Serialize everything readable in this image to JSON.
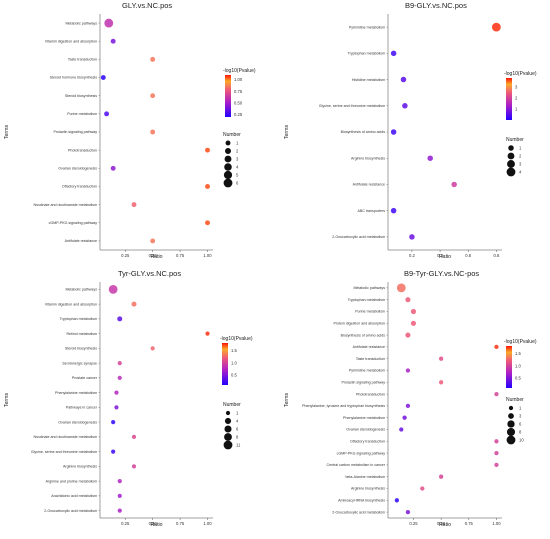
{
  "chart_data": [
    {
      "type": "scatter",
      "title": "GLY.vs.NC.pos",
      "xlabel": "Ratio",
      "ylabel": "Terms",
      "xticks": [
        0.25,
        0.5,
        0.75,
        1.0
      ],
      "xticklabels": [
        "0.25",
        "0.50",
        "0.75",
        "1.00"
      ],
      "xlim": [
        0.02,
        1.05
      ],
      "color_legend_title": "-log10(Pvalue)",
      "color_ticks": [
        "0.25",
        "0.50",
        "0.75",
        "1.00"
      ],
      "color_range": [
        0.2,
        1.1
      ],
      "size_legend_title": "Number",
      "size_legend_values": [
        1,
        2,
        3,
        4,
        5,
        6
      ],
      "terms": [
        "Metabolic pathways",
        "Vitamin digestion and absorption",
        "Taste transduction",
        "Steroid hormone biosynthesis",
        "Steroid biosynthesis",
        "Purine metabolism",
        "Prolactin signaling pathway",
        "Phototransduction",
        "Ovarian steroidogenesis",
        "Olfactory transduction",
        "Nicotinate and nicotinamide metabolism",
        "cGMP-PKG signaling pathway",
        "Antifolate resistance"
      ],
      "x": [
        0.1,
        0.14,
        0.5,
        0.05,
        0.5,
        0.08,
        0.5,
        1.0,
        0.14,
        1.0,
        0.33,
        1.0,
        0.5
      ],
      "number": [
        6,
        1,
        1,
        1,
        1,
        1,
        1,
        1,
        1,
        1,
        1,
        1,
        1
      ],
      "neglog10p": [
        0.6,
        0.4,
        0.85,
        0.22,
        0.85,
        0.3,
        0.85,
        1.05,
        0.45,
        1.05,
        0.8,
        1.05,
        0.85
      ]
    },
    {
      "type": "scatter",
      "title": "B9-GLY.vs.NC.pos",
      "xlabel": "Ratio",
      "ylabel": "Terms",
      "xticks": [
        0.2,
        0.4,
        0.6,
        0.8
      ],
      "xticklabels": [
        "0.2",
        "0.4",
        "0.6",
        "0.8"
      ],
      "xlim": [
        0.03,
        0.84
      ],
      "color_legend_title": "-log10(Pvalue)",
      "color_ticks": [
        "1",
        "2",
        "3"
      ],
      "color_range": [
        0,
        3.8
      ],
      "size_legend_title": "Number",
      "size_legend_values": [
        1,
        2,
        3,
        4
      ],
      "terms": [
        "Pyrimidine metabolism",
        "Tryptophan metabolism",
        "Histidine metabolism",
        "Glycine, serine and threonine metabolism",
        "Biosynthesis of amino acids",
        "Arginine biosynthesis",
        "Antifolate resistance",
        "ABC transporters",
        "2-Oxocarboxylic acid metabolism"
      ],
      "x": [
        0.8,
        0.07,
        0.14,
        0.15,
        0.07,
        0.33,
        0.5,
        0.07,
        0.2
      ],
      "number": [
        4,
        1,
        1,
        1,
        1,
        1,
        1,
        1,
        1
      ],
      "neglog10p": [
        3.7,
        0.3,
        0.5,
        0.6,
        0.3,
        1.1,
        1.9,
        0.3,
        0.7
      ]
    },
    {
      "type": "scatter",
      "title": "Tyr-GLY.vs.NC.pos",
      "xlabel": "Ratio",
      "ylabel": "Terms",
      "xticks": [
        0.25,
        0.5,
        0.75,
        1.0
      ],
      "xticklabels": [
        "0.25",
        "0.50",
        "0.75",
        "1.00"
      ],
      "xlim": [
        0.02,
        1.05
      ],
      "color_legend_title": "-log10(Pvalue)",
      "color_ticks": [
        "0.5",
        "1.0",
        "1.5"
      ],
      "color_range": [
        0.1,
        1.8
      ],
      "size_legend_title": "Number",
      "size_legend_values": [
        1,
        4,
        6,
        8,
        11
      ],
      "terms": [
        "Metabolic pathways",
        "Vitamin digestion and absorption",
        "Tryptophan metabolism",
        "Retinol metabolism",
        "Steroid biosynthesis",
        "Serotonergic synapse",
        "Prostate cancer",
        "Phenylalanine metabolism",
        "Pathways in cancer",
        "Ovarian steroidogenesis",
        "Nicotinate and nicotinamide metabolism",
        "Glycine, serine and threonine metabolism",
        "Arginine biosynthesis",
        "Arginine and proline metabolism",
        "Arachidonic acid metabolism",
        "2-Oxocarboxylic acid metabolism"
      ],
      "x": [
        0.14,
        0.33,
        0.2,
        1.0,
        0.5,
        0.2,
        0.2,
        0.17,
        0.17,
        0.14,
        0.33,
        0.14,
        0.33,
        0.2,
        0.2,
        0.2
      ],
      "number": [
        11,
        2,
        2,
        1,
        1,
        1,
        1,
        1,
        1,
        1,
        1,
        1,
        1,
        1,
        1,
        1
      ],
      "neglog10p": [
        0.9,
        1.3,
        0.35,
        1.75,
        1.25,
        1.0,
        0.8,
        0.75,
        0.5,
        0.15,
        1.05,
        0.2,
        1.0,
        0.75,
        0.65,
        0.7
      ]
    },
    {
      "type": "scatter",
      "title": "B9-Tyr-GLY.vs.NC-pos",
      "xlabel": "Ratio",
      "ylabel": "Terms",
      "xticks": [
        0.25,
        0.5,
        0.75,
        1.0
      ],
      "xticklabels": [
        "0.25",
        "0.50",
        "0.75",
        "1.00"
      ],
      "xlim": [
        0.02,
        1.05
      ],
      "color_legend_title": "-log10(Pvalue)",
      "color_ticks": [
        "0.5",
        "1.0",
        "1.5"
      ],
      "color_range": [
        0.1,
        1.8
      ],
      "size_legend_title": "Number",
      "size_legend_values": [
        1,
        3,
        6,
        8,
        10
      ],
      "terms": [
        "Metabolic pathways",
        "Tryptophan metabolism",
        "Purine metabolism",
        "Protein digestion and absorption",
        "Biosynthesis of amino acids",
        "Antifolate resistance",
        "Taste transduction",
        "Pyrimidine metabolism",
        "Prolactin signaling pathway",
        "Phototransduction",
        "Phenylalanine, tyrosine and tryptophan biosynthesis",
        "Phenylalanine metabolism",
        "Ovarian steroidogenesis",
        "Olfactory transduction",
        "cGMP-PKG signaling pathway",
        "Central carbon metabolism in cancer",
        "beta-Alanine metabolism",
        "Arginine biosynthesis",
        "Aminoacyl-tRNA biosynthesis",
        "2-Oxocarboxylic acid metabolism"
      ],
      "x": [
        0.14,
        0.2,
        0.25,
        0.25,
        0.2,
        1.0,
        0.5,
        0.2,
        0.5,
        1.0,
        0.2,
        0.17,
        0.14,
        1.0,
        1.0,
        1.0,
        0.5,
        0.33,
        0.1,
        0.2
      ],
      "number": [
        10,
        2,
        2,
        2,
        2,
        1,
        1,
        1,
        1,
        1,
        1,
        1,
        1,
        1,
        1,
        1,
        1,
        1,
        1,
        1
      ],
      "neglog10p": [
        1.3,
        1.2,
        1.2,
        1.2,
        1.2,
        1.75,
        1.1,
        0.7,
        1.2,
        1.0,
        0.5,
        0.45,
        0.4,
        1.0,
        1.0,
        1.0,
        1.0,
        1.1,
        0.15,
        0.5
      ]
    }
  ]
}
